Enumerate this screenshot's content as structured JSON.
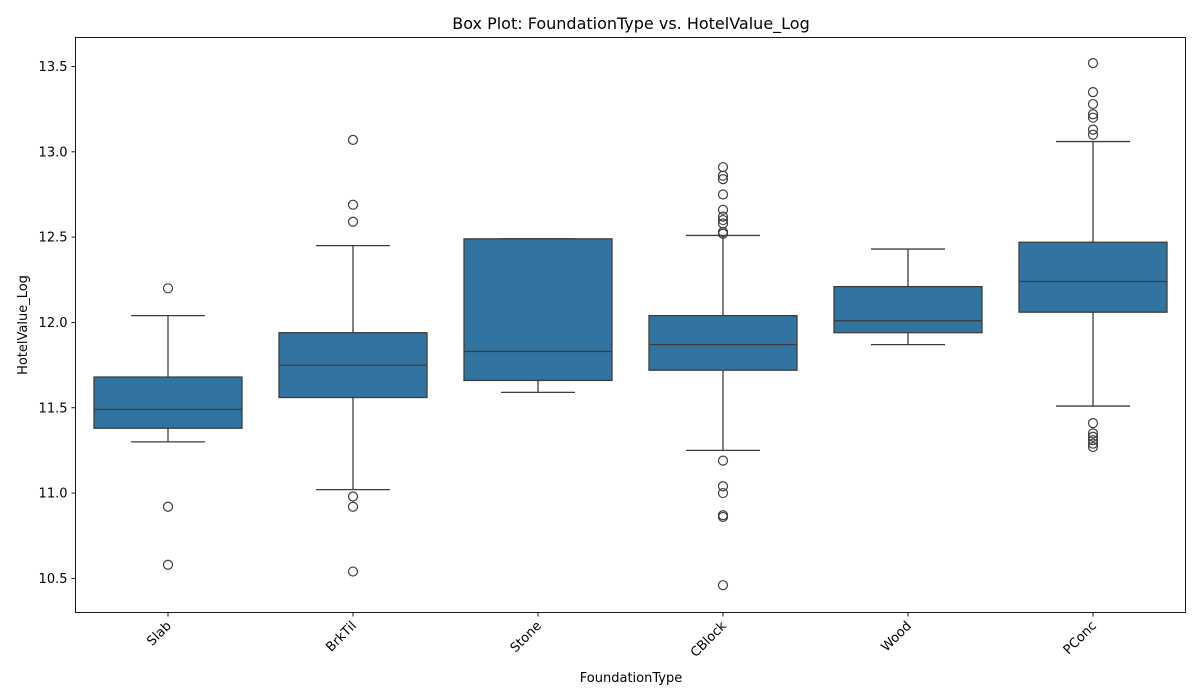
{
  "chart_data": {
    "type": "box",
    "title": "Box Plot: FoundationType vs. HotelValue_Log",
    "xlabel": "FoundationType",
    "ylabel": "HotelValue_Log",
    "ylim": [
      10.3,
      13.67
    ],
    "yticks": [
      10.5,
      11.0,
      11.5,
      12.0,
      12.5,
      13.0,
      13.5
    ],
    "ytick_labels": [
      "10.5",
      "11.0",
      "11.5",
      "12.0",
      "12.5",
      "13.0",
      "13.5"
    ],
    "grid": false,
    "box_color": "#3274a1",
    "categories": [
      "Slab",
      "BrkTil",
      "Stone",
      "CBlock",
      "Wood",
      "PConc"
    ],
    "boxes": [
      {
        "category": "Slab",
        "whisker_low": 11.3,
        "q1": 11.38,
        "median": 11.49,
        "q3": 11.68,
        "whisker_high": 12.04,
        "outliers": [
          12.2,
          10.92,
          10.58
        ]
      },
      {
        "category": "BrkTil",
        "whisker_low": 11.02,
        "q1": 11.56,
        "median": 11.75,
        "q3": 11.94,
        "whisker_high": 12.45,
        "outliers": [
          13.07,
          12.69,
          12.59,
          10.98,
          10.92,
          10.54
        ]
      },
      {
        "category": "Stone",
        "whisker_low": 11.59,
        "q1": 11.66,
        "median": 11.83,
        "q3": 12.49,
        "whisker_high": 12.49,
        "outliers": []
      },
      {
        "category": "CBlock",
        "whisker_low": 11.25,
        "q1": 11.72,
        "median": 11.87,
        "q3": 12.04,
        "whisker_high": 12.51,
        "outliers": [
          12.91,
          12.86,
          12.84,
          12.75,
          12.66,
          12.62,
          12.6,
          12.58,
          12.53,
          12.52,
          11.19,
          11.04,
          11.0,
          10.87,
          10.86,
          10.46
        ]
      },
      {
        "category": "Wood",
        "whisker_low": 11.87,
        "q1": 11.94,
        "median": 12.01,
        "q3": 12.21,
        "whisker_high": 12.43,
        "outliers": []
      },
      {
        "category": "PConc",
        "whisker_low": 11.51,
        "q1": 12.06,
        "median": 12.24,
        "q3": 12.47,
        "whisker_high": 13.06,
        "outliers": [
          13.52,
          13.35,
          13.28,
          13.22,
          13.2,
          13.13,
          13.1,
          11.41,
          11.35,
          11.33,
          11.31,
          11.29,
          11.27
        ]
      }
    ]
  }
}
